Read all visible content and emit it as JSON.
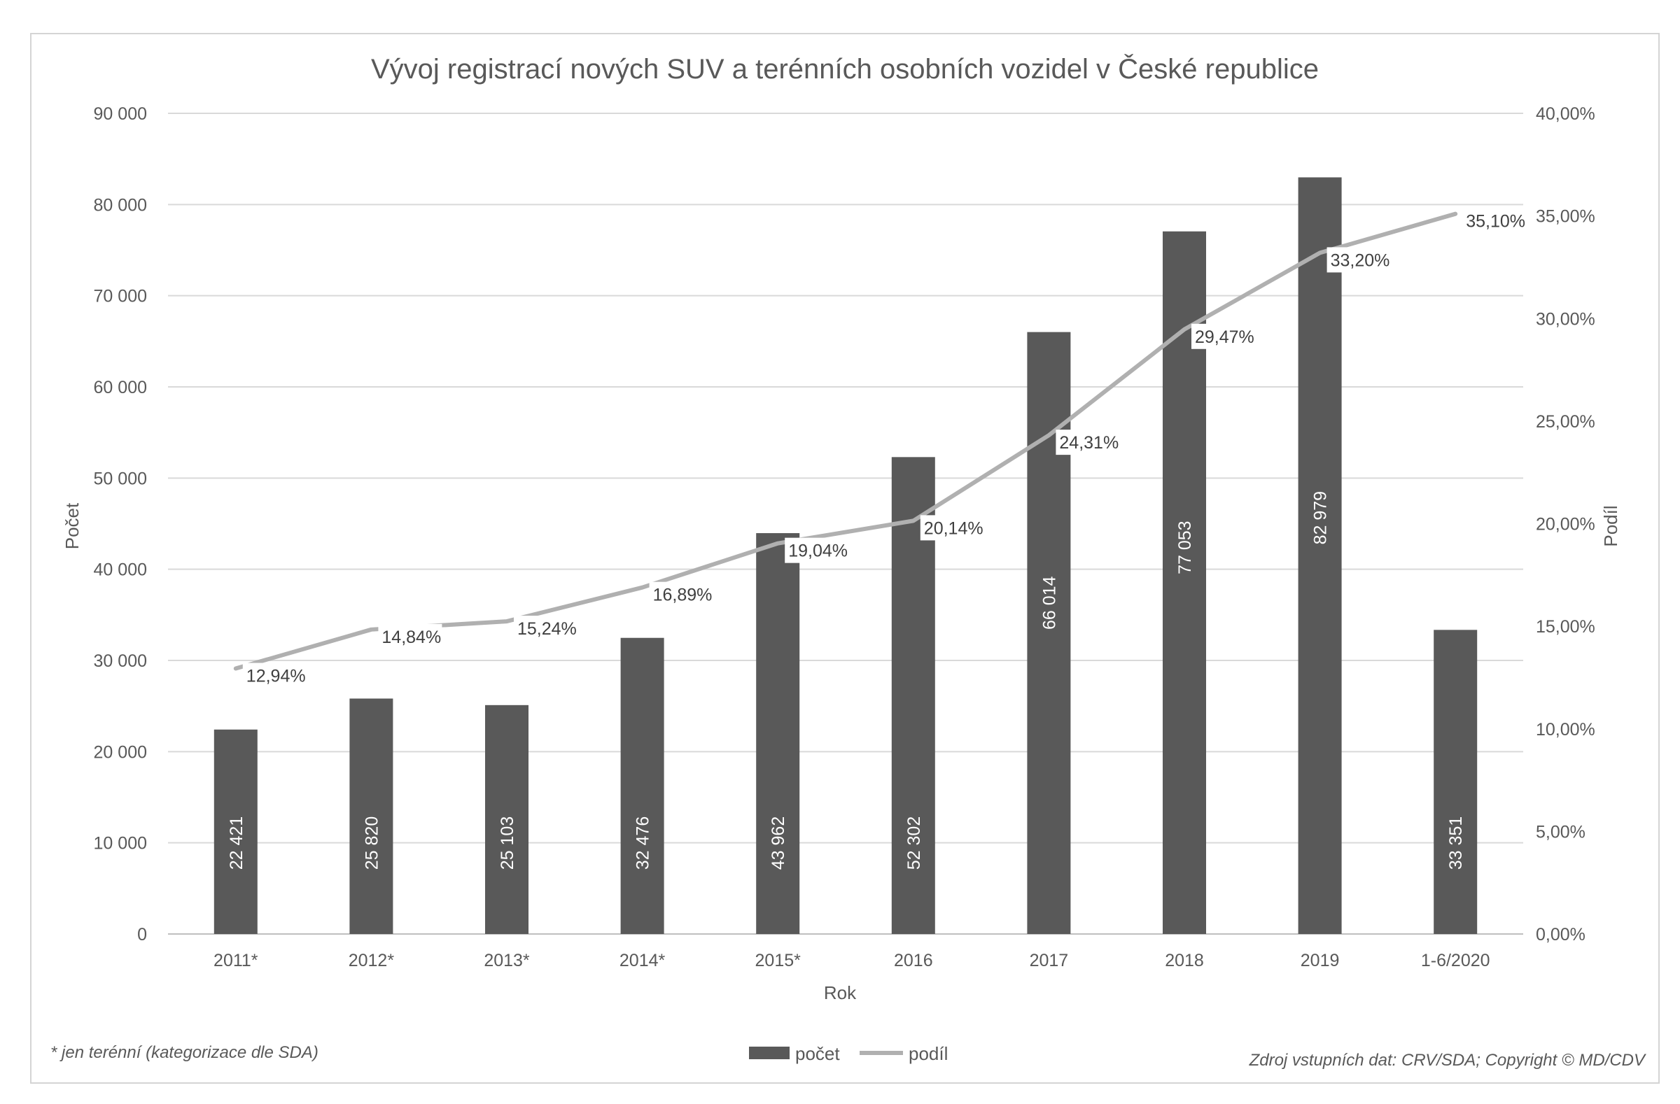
{
  "chart_data": {
    "type": "bar+line",
    "title": "Vývoj registrací nových SUV a terénních osobních vozidel v České republice",
    "xlabel": "Rok",
    "ylabel_left": "Počet",
    "ylabel_right": "Podíl",
    "categories": [
      "2011*",
      "2012*",
      "2013*",
      "2014*",
      "2015*",
      "2016",
      "2017",
      "2018",
      "2019",
      "1-6/2020"
    ],
    "y_left": {
      "min": 0,
      "max": 90000,
      "step": 10000,
      "ticks": [
        "0",
        "10 000",
        "20 000",
        "30 000",
        "40 000",
        "50 000",
        "60 000",
        "70 000",
        "80 000",
        "90 000"
      ]
    },
    "y_right": {
      "min": 0,
      "max": 40,
      "step": 5,
      "ticks": [
        "0,00%",
        "5,00%",
        "10,00%",
        "15,00%",
        "20,00%",
        "25,00%",
        "30,00%",
        "35,00%",
        "40,00%"
      ]
    },
    "series": [
      {
        "name": "počet",
        "type": "bar",
        "color": "#595959",
        "values": [
          22421,
          25820,
          25103,
          32476,
          43962,
          52302,
          66014,
          77053,
          82979,
          33351
        ],
        "labels": [
          "22 421",
          "25 820",
          "25 103",
          "32 476",
          "43 962",
          "52 302",
          "66 014",
          "77 053",
          "82 979",
          "33 351"
        ]
      },
      {
        "name": "podíl",
        "type": "line",
        "color": "#b0b0b0",
        "values": [
          12.94,
          14.84,
          15.24,
          16.89,
          19.04,
          20.14,
          24.31,
          29.47,
          33.2,
          35.1
        ],
        "labels": [
          "12,94%",
          "14,84%",
          "15,24%",
          "16,89%",
          "19,04%",
          "20,14%",
          "24,31%",
          "29,47%",
          "33,20%",
          "35,10%"
        ]
      }
    ],
    "legend": [
      "počet",
      "podíl"
    ],
    "legend_position": "bottom",
    "grid": true
  },
  "footnote": "* jen terénní (kategorizace dle SDA)",
  "source": "Zdroj vstupních dat: CRV/SDA; Copyright © MD/CDV"
}
